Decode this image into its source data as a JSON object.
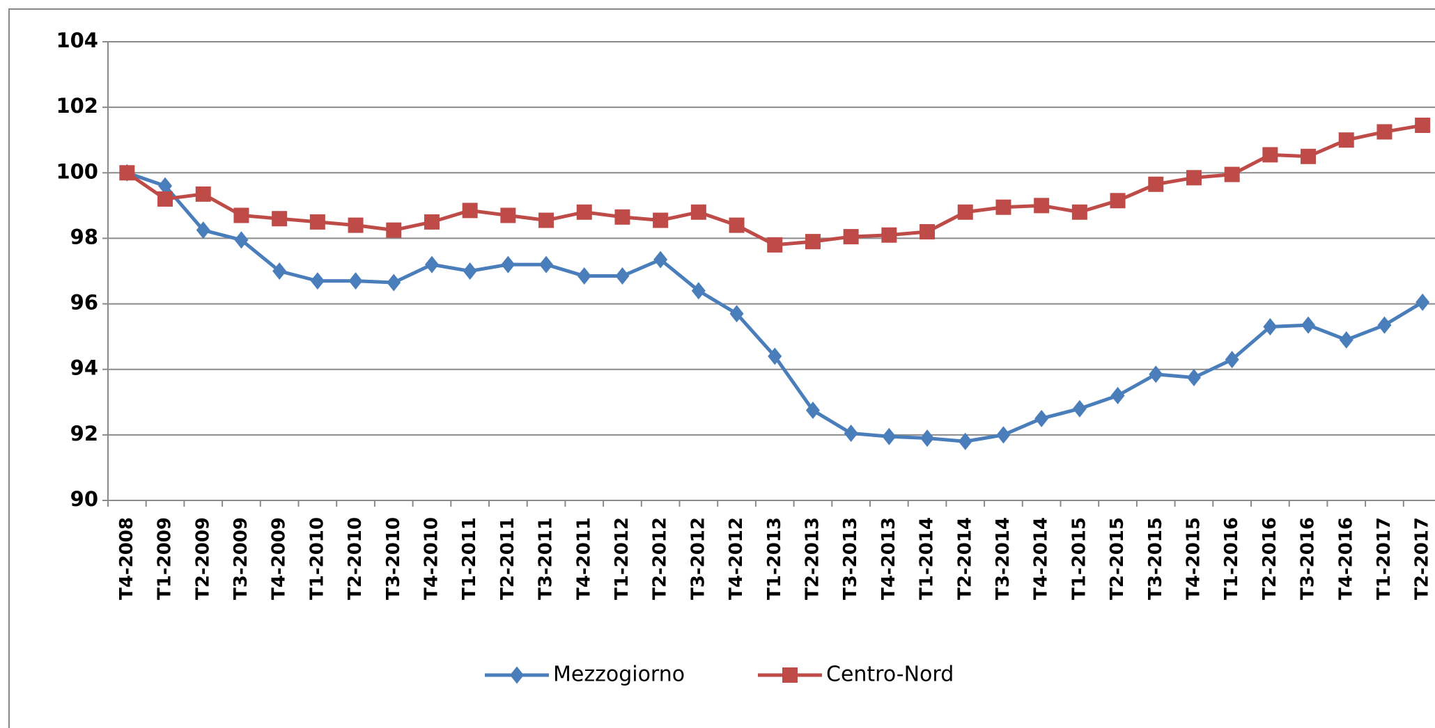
{
  "chart_data": {
    "type": "line",
    "categories": [
      "T4-2008",
      "T1-2009",
      "T2-2009",
      "T3-2009",
      "T4-2009",
      "T1-2010",
      "T2-2010",
      "T3-2010",
      "T4-2010",
      "T1-2011",
      "T2-2011",
      "T3-2011",
      "T4-2011",
      "T1-2012",
      "T2-2012",
      "T3-2012",
      "T4-2012",
      "T1-2013",
      "T2-2013",
      "T3-2013",
      "T4-2013",
      "T1-2014",
      "T2-2014",
      "T3-2014",
      "T4-2014",
      "T1-2015",
      "T2-2015",
      "T3-2015",
      "T4-2015",
      "T1-2016",
      "T2-2016",
      "T3-2016",
      "T4-2016",
      "T1-2017",
      "T2-2017"
    ],
    "series": [
      {
        "name": "Mezzogiorno",
        "color": "#4a7ebb",
        "marker": "diamond",
        "values": [
          100.0,
          99.6,
          98.25,
          97.95,
          97.0,
          96.7,
          96.7,
          96.65,
          97.2,
          97.0,
          97.2,
          97.2,
          96.85,
          96.85,
          97.35,
          96.4,
          95.7,
          94.4,
          92.75,
          92.05,
          91.95,
          91.9,
          91.8,
          92.0,
          92.5,
          92.8,
          93.2,
          93.85,
          93.75,
          94.3,
          95.3,
          95.35,
          94.9,
          95.35,
          96.05
        ]
      },
      {
        "name": "Centro-Nord",
        "color": "#be4b48",
        "marker": "square",
        "values": [
          100.0,
          99.2,
          99.35,
          98.7,
          98.6,
          98.5,
          98.4,
          98.25,
          98.5,
          98.85,
          98.7,
          98.55,
          98.8,
          98.65,
          98.55,
          98.8,
          98.4,
          97.8,
          97.9,
          98.05,
          98.1,
          98.2,
          98.8,
          98.95,
          99.0,
          98.8,
          99.15,
          99.65,
          99.85,
          99.95,
          100.55,
          100.5,
          101.0,
          101.25,
          101.45
        ]
      }
    ],
    "ylim": [
      90,
      104
    ],
    "yticks": [
      90,
      92,
      94,
      96,
      98,
      100,
      102,
      104
    ],
    "grid": true,
    "legend": "bottom"
  }
}
